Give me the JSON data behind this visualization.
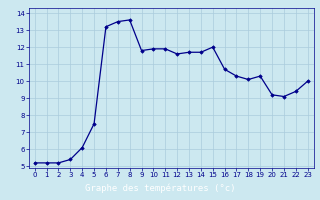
{
  "x": [
    0,
    1,
    2,
    3,
    4,
    5,
    6,
    7,
    8,
    9,
    10,
    11,
    12,
    13,
    14,
    15,
    16,
    17,
    18,
    19,
    20,
    21,
    22,
    23
  ],
  "y": [
    5.2,
    5.2,
    5.2,
    5.4,
    6.1,
    7.5,
    13.2,
    13.5,
    13.6,
    11.8,
    11.9,
    11.9,
    11.6,
    11.7,
    11.7,
    12.0,
    10.7,
    10.3,
    10.1,
    10.3,
    9.2,
    9.1,
    9.4,
    10.0
  ],
  "line_color": "#00008b",
  "marker": "D",
  "marker_size": 1.8,
  "line_width": 0.9,
  "bg_color": "#cce8f0",
  "grid_color": "#aaccdd",
  "xlabel": "Graphe des températures (°c)",
  "xlabel_fontsize": 6.5,
  "xlabel_bg": "#3355bb",
  "ylim": [
    5,
    14
  ],
  "xlim": [
    -0.5,
    23.5
  ],
  "yticks": [
    5,
    6,
    7,
    8,
    9,
    10,
    11,
    12,
    13,
    14
  ],
  "xticks": [
    0,
    1,
    2,
    3,
    4,
    5,
    6,
    7,
    8,
    9,
    10,
    11,
    12,
    13,
    14,
    15,
    16,
    17,
    18,
    19,
    20,
    21,
    22,
    23
  ],
  "tick_fontsize": 5.0,
  "tick_color": "#00008b",
  "spine_color": "#00008b"
}
